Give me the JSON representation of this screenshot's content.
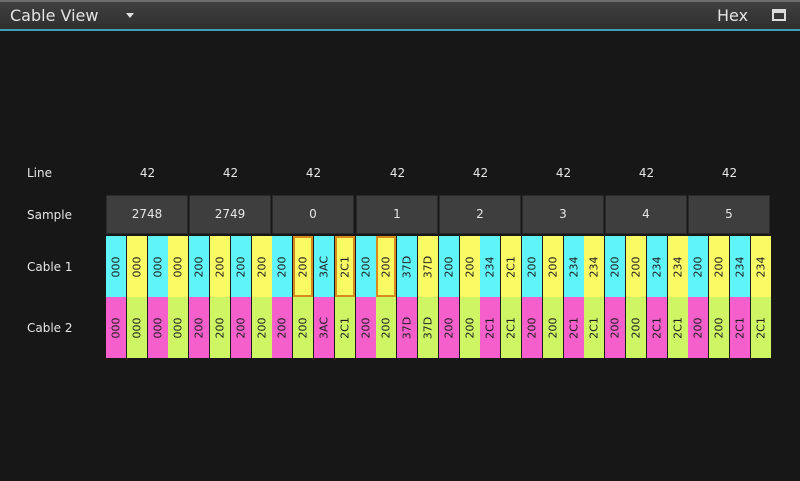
{
  "window": {
    "title": "Cable View",
    "mode": "Hex",
    "dropdown_icon": "chevron-down-icon",
    "maximize_icon": "maximize-icon"
  },
  "labels": {
    "line": "Line",
    "sample": "Sample",
    "cable1": "Cable 1",
    "cable2": "Cable 2"
  },
  "colors": {
    "cyan": "#5ff5f8",
    "yellow": "#fafb64",
    "magenta": "#f55fcb",
    "green": "#cdf564",
    "highlight": "#d88a1c"
  },
  "columns": [
    {
      "line": "42",
      "sample": "2748"
    },
    {
      "line": "42",
      "sample": "2749"
    },
    {
      "line": "42",
      "sample": "0"
    },
    {
      "line": "42",
      "sample": "1"
    },
    {
      "line": "42",
      "sample": "2"
    },
    {
      "line": "42",
      "sample": "3"
    },
    {
      "line": "42",
      "sample": "4"
    },
    {
      "line": "42",
      "sample": "5"
    }
  ],
  "cable1": [
    {
      "v": "000",
      "c": "cyan"
    },
    {
      "v": "000",
      "c": "yellow"
    },
    {
      "v": "000",
      "c": "cyan"
    },
    {
      "v": "000",
      "c": "yellow"
    },
    {
      "v": "200",
      "c": "cyan"
    },
    {
      "v": "200",
      "c": "yellow"
    },
    {
      "v": "200",
      "c": "cyan"
    },
    {
      "v": "200",
      "c": "yellow"
    },
    {
      "v": "200",
      "c": "cyan"
    },
    {
      "v": "200",
      "c": "yellow",
      "hl": true
    },
    {
      "v": "3AC",
      "c": "cyan"
    },
    {
      "v": "2C1",
      "c": "yellow",
      "hl": true
    },
    {
      "v": "200",
      "c": "cyan"
    },
    {
      "v": "200",
      "c": "yellow",
      "hl": true
    },
    {
      "v": "37D",
      "c": "cyan"
    },
    {
      "v": "37D",
      "c": "yellow"
    },
    {
      "v": "200",
      "c": "cyan"
    },
    {
      "v": "200",
      "c": "yellow"
    },
    {
      "v": "234",
      "c": "cyan"
    },
    {
      "v": "2C1",
      "c": "yellow"
    },
    {
      "v": "200",
      "c": "cyan"
    },
    {
      "v": "200",
      "c": "yellow"
    },
    {
      "v": "234",
      "c": "cyan"
    },
    {
      "v": "234",
      "c": "yellow"
    },
    {
      "v": "200",
      "c": "cyan"
    },
    {
      "v": "200",
      "c": "yellow"
    },
    {
      "v": "234",
      "c": "cyan"
    },
    {
      "v": "234",
      "c": "yellow"
    },
    {
      "v": "200",
      "c": "cyan"
    },
    {
      "v": "200",
      "c": "yellow"
    },
    {
      "v": "234",
      "c": "cyan"
    },
    {
      "v": "234",
      "c": "yellow"
    }
  ],
  "cable2": [
    {
      "v": "000",
      "c": "magenta"
    },
    {
      "v": "000",
      "c": "green"
    },
    {
      "v": "000",
      "c": "magenta"
    },
    {
      "v": "000",
      "c": "green"
    },
    {
      "v": "200",
      "c": "magenta"
    },
    {
      "v": "200",
      "c": "green"
    },
    {
      "v": "200",
      "c": "magenta"
    },
    {
      "v": "200",
      "c": "green"
    },
    {
      "v": "200",
      "c": "magenta"
    },
    {
      "v": "200",
      "c": "green"
    },
    {
      "v": "3AC",
      "c": "magenta"
    },
    {
      "v": "2C1",
      "c": "green"
    },
    {
      "v": "200",
      "c": "magenta"
    },
    {
      "v": "200",
      "c": "green"
    },
    {
      "v": "37D",
      "c": "magenta"
    },
    {
      "v": "37D",
      "c": "green"
    },
    {
      "v": "200",
      "c": "magenta"
    },
    {
      "v": "200",
      "c": "green"
    },
    {
      "v": "2C1",
      "c": "magenta"
    },
    {
      "v": "2C1",
      "c": "green"
    },
    {
      "v": "200",
      "c": "magenta"
    },
    {
      "v": "200",
      "c": "green"
    },
    {
      "v": "2C1",
      "c": "magenta"
    },
    {
      "v": "2C1",
      "c": "green"
    },
    {
      "v": "200",
      "c": "magenta"
    },
    {
      "v": "200",
      "c": "green"
    },
    {
      "v": "2C1",
      "c": "magenta"
    },
    {
      "v": "2C1",
      "c": "green"
    },
    {
      "v": "200",
      "c": "magenta"
    },
    {
      "v": "200",
      "c": "green"
    },
    {
      "v": "2C1",
      "c": "magenta"
    },
    {
      "v": "2C1",
      "c": "green"
    }
  ]
}
